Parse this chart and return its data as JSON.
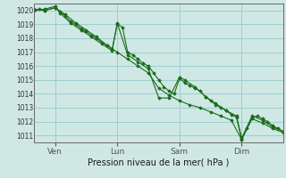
{
  "bg_color": "#cfe8e4",
  "grid_color": "#9ecece",
  "line_color": "#1a6b1a",
  "marker_color": "#1a6b1a",
  "xlabel": "Pression niveau de la mer( hPa )",
  "ylim": [
    1010.5,
    1020.5
  ],
  "yticks": [
    1011,
    1012,
    1013,
    1014,
    1015,
    1016,
    1017,
    1018,
    1019,
    1020
  ],
  "xlim": [
    0,
    96
  ],
  "xtick_positions": [
    8,
    32,
    56,
    80
  ],
  "xtick_labels": [
    "Ven",
    "Lun",
    "Sam",
    "Dim"
  ],
  "series": [
    [
      [
        0,
        1020.0
      ],
      [
        2,
        1020.1
      ],
      [
        4,
        1020.0
      ],
      [
        8,
        1020.2
      ],
      [
        10,
        1019.9
      ],
      [
        12,
        1019.6
      ],
      [
        14,
        1019.2
      ],
      [
        16,
        1019.0
      ],
      [
        18,
        1018.7
      ],
      [
        20,
        1018.5
      ],
      [
        22,
        1018.2
      ],
      [
        24,
        1018.0
      ],
      [
        26,
        1017.7
      ],
      [
        28,
        1017.5
      ],
      [
        30,
        1017.2
      ],
      [
        32,
        1019.0
      ],
      [
        34,
        1018.8
      ],
      [
        36,
        1017.0
      ],
      [
        38,
        1016.8
      ],
      [
        40,
        1016.5
      ],
      [
        42,
        1016.2
      ],
      [
        44,
        1016.0
      ],
      [
        46,
        1015.5
      ],
      [
        48,
        1015.0
      ],
      [
        50,
        1014.5
      ],
      [
        52,
        1014.2
      ],
      [
        54,
        1014.0
      ],
      [
        56,
        1015.1
      ],
      [
        58,
        1014.8
      ],
      [
        60,
        1014.6
      ],
      [
        62,
        1014.4
      ],
      [
        64,
        1014.2
      ],
      [
        66,
        1013.8
      ],
      [
        68,
        1013.5
      ],
      [
        70,
        1013.2
      ],
      [
        72,
        1013.0
      ],
      [
        74,
        1012.8
      ],
      [
        76,
        1012.5
      ],
      [
        78,
        1012.3
      ],
      [
        80,
        1010.7
      ],
      [
        82,
        1011.5
      ],
      [
        84,
        1012.3
      ],
      [
        86,
        1012.4
      ],
      [
        88,
        1012.2
      ],
      [
        90,
        1012.0
      ],
      [
        92,
        1011.7
      ],
      [
        94,
        1011.5
      ],
      [
        96,
        1011.3
      ]
    ],
    [
      [
        0,
        1020.0
      ],
      [
        4,
        1020.1
      ],
      [
        8,
        1020.3
      ],
      [
        10,
        1019.8
      ],
      [
        14,
        1019.1
      ],
      [
        18,
        1018.6
      ],
      [
        22,
        1018.1
      ],
      [
        26,
        1017.6
      ],
      [
        30,
        1017.1
      ],
      [
        32,
        1019.1
      ],
      [
        36,
        1016.8
      ],
      [
        40,
        1016.3
      ],
      [
        44,
        1015.8
      ],
      [
        48,
        1013.7
      ],
      [
        52,
        1013.7
      ],
      [
        56,
        1015.2
      ],
      [
        58,
        1015.0
      ],
      [
        62,
        1014.5
      ],
      [
        66,
        1013.8
      ],
      [
        70,
        1013.3
      ],
      [
        74,
        1012.8
      ],
      [
        78,
        1012.4
      ],
      [
        80,
        1010.8
      ],
      [
        84,
        1012.4
      ],
      [
        88,
        1012.1
      ],
      [
        92,
        1011.6
      ],
      [
        96,
        1011.3
      ]
    ],
    [
      [
        0,
        1020.1
      ],
      [
        4,
        1020.0
      ],
      [
        8,
        1020.2
      ],
      [
        12,
        1019.7
      ],
      [
        16,
        1019.1
      ],
      [
        20,
        1018.6
      ],
      [
        24,
        1018.1
      ],
      [
        28,
        1017.5
      ],
      [
        32,
        1017.0
      ],
      [
        36,
        1016.5
      ],
      [
        40,
        1016.0
      ],
      [
        44,
        1015.5
      ],
      [
        48,
        1014.4
      ],
      [
        52,
        1013.9
      ],
      [
        56,
        1013.5
      ],
      [
        60,
        1013.2
      ],
      [
        64,
        1013.0
      ],
      [
        68,
        1012.7
      ],
      [
        72,
        1012.4
      ],
      [
        76,
        1012.1
      ],
      [
        80,
        1010.7
      ],
      [
        84,
        1012.2
      ],
      [
        88,
        1011.9
      ],
      [
        92,
        1011.5
      ],
      [
        96,
        1011.2
      ]
    ]
  ]
}
